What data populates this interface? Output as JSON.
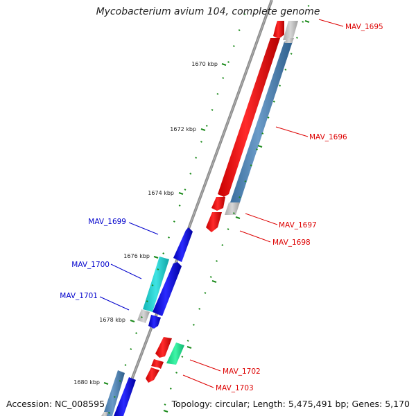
{
  "title": "Mycobacterium avium 104, complete genome",
  "footer": {
    "accession": "Accession: NC_008595",
    "topology": "Topology: circular; Length: 5,475,491 bp; Genes: 5,170"
  },
  "colors": {
    "forward_label": "#0000cc",
    "reverse_label": "#dd0000",
    "tick": "#1a8a1a",
    "backbone": "#888888"
  },
  "scale_labels": [
    "1670 kbp",
    "1672 kbp",
    "1674 kbp",
    "1676 kbp",
    "1678 kbp",
    "1680 kbp"
  ],
  "gene_labels": {
    "reverse": [
      "MAV_1695",
      "MAV_1696",
      "MAV_1697",
      "MAV_1698",
      "MAV_1702",
      "MAV_1703"
    ],
    "forward": [
      "MAV_1699",
      "MAV_1700",
      "MAV_1701"
    ]
  }
}
